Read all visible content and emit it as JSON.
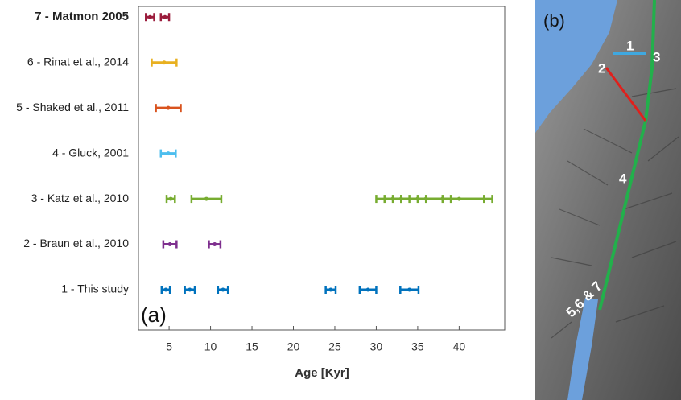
{
  "chart_data": {
    "type": "errorbar",
    "xlabel": "Age [Kyr]",
    "annotation": "(a)",
    "xlim": [
      1.3,
      45.5
    ],
    "xticks": [
      5,
      10,
      15,
      20,
      25,
      30,
      35,
      40
    ],
    "series": [
      {
        "name": "1 - This study",
        "color": "#0072bd",
        "values": [
          4.6,
          7.5,
          11.5,
          24.5,
          29,
          34
        ],
        "errors": [
          0.5,
          0.6,
          0.6,
          0.6,
          1,
          1.1
        ]
      },
      {
        "name": "2 - Braun et al., 2010",
        "color": "#7e2f8e",
        "values": [
          5.1,
          10.5
        ],
        "errors": [
          0.8,
          0.7
        ]
      },
      {
        "name": "3 - Katz et al., 2010",
        "color": "#77ac30",
        "values": [
          5.2,
          9.5,
          32,
          33,
          35,
          36,
          38,
          40
        ],
        "errors": [
          0.5,
          1.8,
          2,
          2,
          3,
          3,
          5,
          4
        ]
      },
      {
        "name": "4 - Gluck, 2001",
        "color": "#4dbeee",
        "values": [
          4.9
        ],
        "errors": [
          0.9
        ]
      },
      {
        "name": "5 - Shaked et al., 2011",
        "color": "#d9531e",
        "values": [
          4.9
        ],
        "errors": [
          1.5
        ]
      },
      {
        "name": "6 - Rinat et al., 2014",
        "color": "#e8b020",
        "values": [
          4.4
        ],
        "errors": [
          1.5
        ]
      },
      {
        "name": "7 - Matmon 2005",
        "color": "#9b1c3c",
        "values": [
          2.7,
          4.5
        ],
        "errors": [
          0.5,
          0.5
        ]
      }
    ]
  },
  "map": {
    "label": "(b)",
    "markers": [
      "1",
      "2",
      "3",
      "4",
      "5,6 & 7"
    ]
  }
}
